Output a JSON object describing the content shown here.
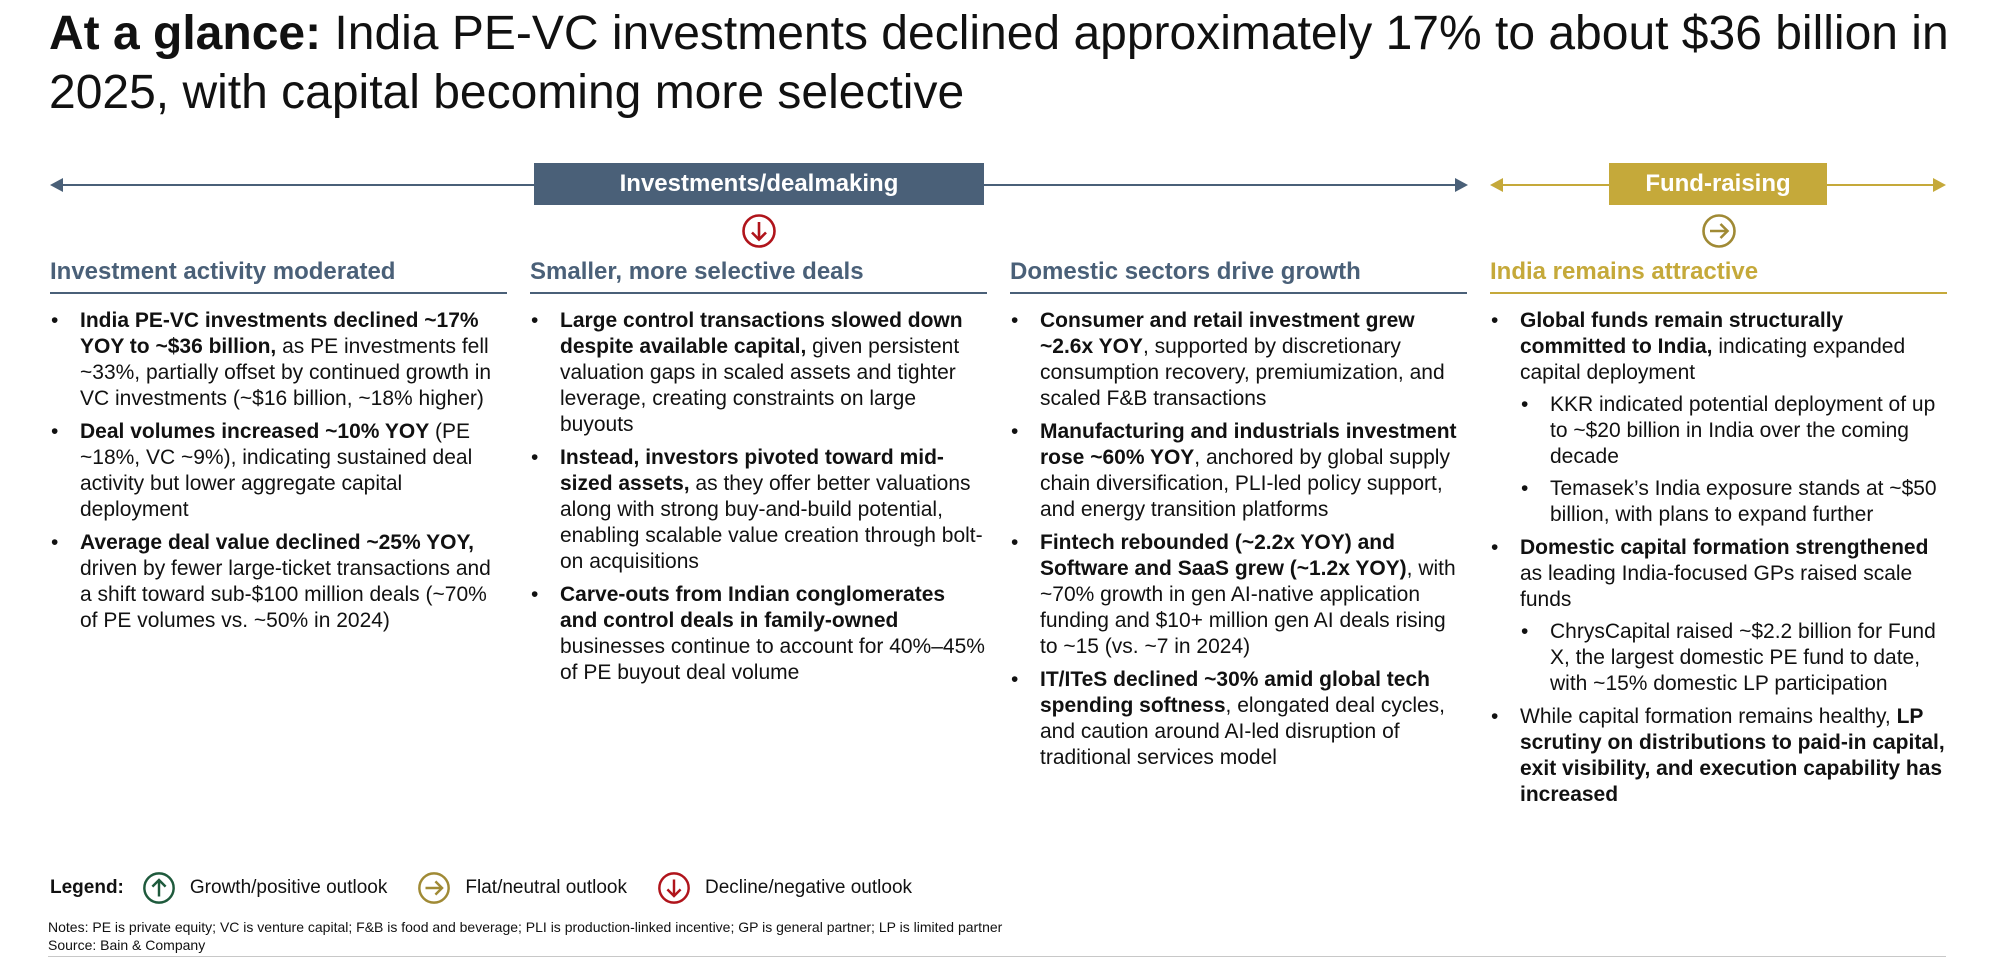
{
  "title": {
    "bold": "At a glance:",
    "rest": "India PE-VC investments declined approximately 17% to about $36 billion in 2025, with capital becoming more selective"
  },
  "bands": {
    "investments": "Investments/dealmaking",
    "fundraising": "Fund-raising"
  },
  "colors": {
    "slate": "#4a6078",
    "gold": "#c5a93a",
    "decline_red": "#b0141b",
    "growth_green": "#1e5a3c"
  },
  "section_icons": {
    "investments": "decline-arrow-icon",
    "fundraising": "flat-arrow-icon"
  },
  "columns": [
    {
      "heading": "Investment activity moderated",
      "bullets": [
        {
          "bold": "India PE-VC investments declined ~17% YOY to ~$36 billion,",
          "text": " as PE investments fell ~33%, partially offset by continued growth in VC investments (~$16 billion, ~18% higher)"
        },
        {
          "bold": "Deal volumes increased ~10% YOY",
          "text": " (PE ~18%, VC ~9%), indicating sustained deal activity but lower aggregate capital deployment"
        },
        {
          "bold": "Average deal value declined ~25% YOY,",
          "text": " driven by fewer large-ticket transactions and a shift toward sub-$100 million deals (~70% of PE volumes vs. ~50% in 2024)"
        }
      ]
    },
    {
      "heading": "Smaller, more selective deals",
      "bullets": [
        {
          "bold": "Large control transactions slowed down despite available capital,",
          "text": " given persistent valuation gaps in scaled assets and tighter leverage, creating constraints on large buyouts"
        },
        {
          "bold": "Instead, investors pivoted toward mid-sized assets,",
          "text": " as they offer better valuations along with strong buy-and-build potential, enabling scalable value creation through bolt-on acquisitions"
        },
        {
          "bold": "Carve-outs from Indian conglomerates and control deals in family-owned",
          "text": " businesses continue to account for 40%–45% of PE buyout deal volume"
        }
      ]
    },
    {
      "heading": "Domestic sectors drive growth",
      "bullets": [
        {
          "bold": "Consumer and retail investment grew ~2.6x YOY",
          "text": ", supported by discretionary consumption recovery, premiumization, and scaled F&B transactions"
        },
        {
          "bold": "Manufacturing and industrials investment rose ~60% YOY",
          "text": ", anchored by global supply chain diversification, PLI-led policy support, and energy transition platforms"
        },
        {
          "bold": "Fintech rebounded (~2.2x YOY) and Software and SaaS grew (~1.2x YOY)",
          "text": ", with ~70% growth in gen AI-native application funding and $10+ million gen AI deals rising to ~15 (vs. ~7 in 2024)"
        },
        {
          "bold": "IT/ITeS declined ~30% amid global tech spending softness",
          "text": ", elongated deal cycles, and caution around AI-led disruption of traditional services model"
        }
      ]
    },
    {
      "heading": "India remains attractive",
      "bullets": [
        {
          "bold": "Global funds remain structurally committed to India,",
          "text": " indicating expanded capital deployment",
          "sub": [
            "KKR indicated potential deployment of up to ~$20 billion in India over the coming decade",
            "Temasek’s India exposure stands at ~$50 billion, with plans to expand further"
          ]
        },
        {
          "bold": "Domestic capital formation strengthened",
          "text": " as leading India-focused GPs raised scale funds",
          "sub": [
            "ChrysCapital raised ~$2.2 billion for Fund X, the largest domestic PE fund to date, with ~15% domestic LP participation"
          ]
        },
        {
          "lead": "While capital formation remains healthy, ",
          "bold": "LP scrutiny on distributions to paid-in capital, exit visibility, and execution capability has increased"
        }
      ]
    }
  ],
  "legend": {
    "label": "Legend:",
    "items": [
      {
        "icon": "growth-arrow-icon",
        "text": "Growth/positive outlook"
      },
      {
        "icon": "flat-arrow-icon",
        "text": "Flat/neutral outlook"
      },
      {
        "icon": "decline-arrow-icon",
        "text": "Decline/negative outlook"
      }
    ]
  },
  "notes": "Notes: PE is private equity; VC is venture capital; F&B is food and beverage; PLI is production-linked incentive; GP is general partner; LP is limited partner",
  "source": "Source: Bain & Company"
}
